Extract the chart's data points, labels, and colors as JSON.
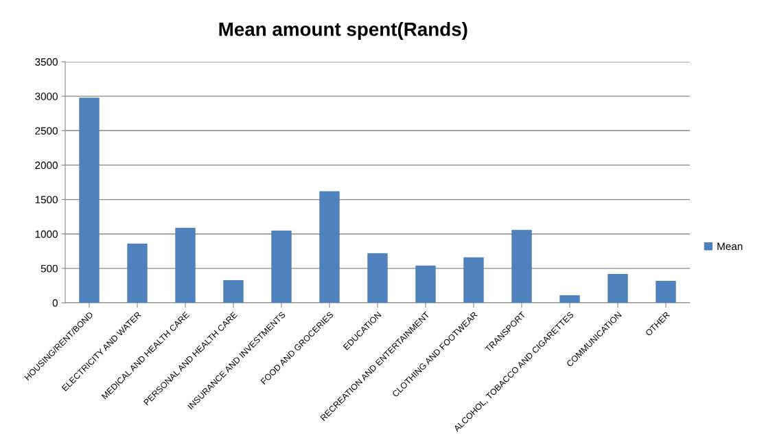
{
  "chart_data": {
    "type": "bar",
    "title": "Mean amount spent(Rands)",
    "categories": [
      "HOUSING/RENT/BOND",
      "ELECTRICITY AND WATER",
      "MEDICAL AND HEALTH CARE",
      "PERSONAL AND HEALTH CARE",
      "INSURANCE AND INVESTMENTS",
      "FOOD AND GROCERIES",
      "EDUCATION",
      "RECREATION AND ENTERTAINMENT",
      "CLOTHING AND FOOTWEAR",
      "TRANSPORT",
      "ALCOHOL, TOBACCO AND CIGARETTES",
      "COMMUNICATION",
      "OTHER"
    ],
    "series": [
      {
        "name": "Mean",
        "color": "#4f81bd",
        "values": [
          2980,
          860,
          1090,
          330,
          1050,
          1620,
          720,
          540,
          660,
          1060,
          110,
          420,
          320
        ]
      }
    ],
    "ylim": [
      0,
      3500
    ],
    "yticks": [
      0,
      500,
      1000,
      1500,
      2000,
      2500,
      3000,
      3500
    ],
    "grid": "y",
    "legend": "right"
  }
}
